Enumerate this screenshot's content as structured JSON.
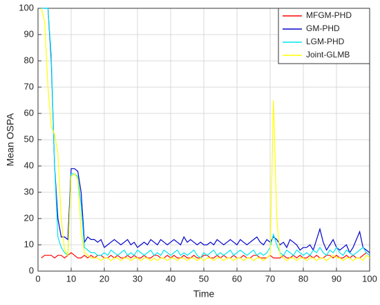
{
  "chart_data": {
    "type": "line",
    "x_label": "Time",
    "y_label": "Mean OSPA",
    "x": [
      1,
      2,
      3,
      4,
      5,
      6,
      7,
      8,
      9,
      10,
      11,
      12,
      13,
      14,
      15,
      16,
      17,
      18,
      19,
      20,
      21,
      22,
      23,
      24,
      25,
      26,
      27,
      28,
      29,
      30,
      31,
      32,
      33,
      34,
      35,
      36,
      37,
      38,
      39,
      40,
      41,
      42,
      43,
      44,
      45,
      46,
      47,
      48,
      49,
      50,
      51,
      52,
      53,
      54,
      55,
      56,
      57,
      58,
      59,
      60,
      61,
      62,
      63,
      64,
      65,
      66,
      67,
      68,
      69,
      70,
      71,
      72,
      73,
      74,
      75,
      76,
      77,
      78,
      79,
      80,
      81,
      82,
      83,
      84,
      85,
      86,
      87,
      88,
      89,
      90,
      91,
      92,
      93,
      94,
      95,
      96,
      97,
      98,
      99,
      100
    ],
    "series": [
      {
        "name": "MFGM-PHD",
        "color": "#ff0000",
        "values": [
          5,
          6,
          6,
          6,
          5,
          6,
          6,
          5,
          6,
          7,
          6,
          5,
          5,
          6,
          5,
          6,
          5,
          6,
          6,
          5,
          5,
          6,
          5,
          6,
          5,
          5,
          6,
          5,
          6,
          5,
          5,
          6,
          5,
          5,
          6,
          6,
          5,
          5,
          6,
          5,
          6,
          5,
          5,
          6,
          5,
          5,
          6,
          5,
          5,
          6,
          6,
          5,
          5,
          6,
          5,
          6,
          5,
          5,
          6,
          5,
          5,
          6,
          5,
          5,
          6,
          6,
          5,
          5,
          5,
          6,
          5,
          5,
          5,
          6,
          5,
          5,
          6,
          5,
          6,
          5,
          5,
          6,
          5,
          6,
          5,
          5,
          6,
          6,
          5,
          6,
          5,
          5,
          6,
          5,
          6,
          5,
          5,
          6,
          7,
          6
        ]
      },
      {
        "name": "GM-PHD",
        "color": "#0000cc",
        "values": [
          100,
          100,
          100,
          80,
          40,
          20,
          13,
          13,
          12,
          39,
          39,
          38,
          30,
          11,
          13,
          12,
          12,
          11,
          12,
          9,
          10,
          11,
          12,
          11,
          10,
          11,
          12,
          10,
          11,
          9,
          10,
          11,
          10,
          12,
          11,
          10,
          12,
          11,
          10,
          11,
          12,
          11,
          10,
          13,
          11,
          12,
          11,
          10,
          11,
          10,
          10,
          11,
          10,
          12,
          11,
          10,
          11,
          12,
          11,
          10,
          12,
          11,
          10,
          11,
          12,
          13,
          11,
          10,
          12,
          11,
          13,
          12,
          10,
          11,
          9,
          12,
          11,
          10,
          8,
          9,
          9,
          10,
          8,
          12,
          16,
          11,
          8,
          10,
          12,
          9,
          8,
          9,
          10,
          7,
          9,
          12,
          15,
          9,
          8,
          7
        ]
      },
      {
        "name": "LGM-PHD",
        "color": "#00e5ee",
        "values": [
          100,
          100,
          100,
          82,
          40,
          13,
          9,
          7,
          6,
          37,
          37,
          36,
          25,
          9,
          8,
          7,
          7,
          6,
          6,
          7,
          6,
          8,
          7,
          6,
          7,
          8,
          6,
          7,
          6,
          8,
          7,
          6,
          7,
          8,
          6,
          7,
          6,
          8,
          7,
          6,
          7,
          8,
          6,
          7,
          6,
          7,
          8,
          6,
          5,
          7,
          6,
          7,
          8,
          6,
          7,
          6,
          7,
          8,
          6,
          7,
          8,
          7,
          6,
          7,
          8,
          6,
          7,
          6,
          7,
          9,
          14,
          10,
          7,
          6,
          8,
          7,
          6,
          8,
          7,
          6,
          7,
          6,
          8,
          7,
          9,
          7,
          6,
          8,
          7,
          9,
          7,
          6,
          8,
          7,
          6,
          7,
          8,
          9,
          7,
          6
        ]
      },
      {
        "name": "Joint-GLMB",
        "color": "#ffff00",
        "values": [
          100,
          95,
          70,
          55,
          52,
          45,
          20,
          8,
          6,
          36,
          37,
          35,
          15,
          7,
          6,
          5,
          5,
          5,
          4,
          5,
          5,
          4,
          5,
          5,
          4,
          5,
          5,
          4,
          5,
          5,
          4,
          5,
          5,
          4,
          5,
          4,
          5,
          5,
          4,
          5,
          5,
          4,
          5,
          5,
          4,
          5,
          5,
          4,
          5,
          4,
          5,
          5,
          4,
          5,
          5,
          4,
          5,
          5,
          4,
          5,
          5,
          4,
          5,
          5,
          4,
          5,
          5,
          4,
          5,
          6,
          65,
          20,
          6,
          5,
          4,
          5,
          5,
          4,
          5,
          5,
          4,
          5,
          5,
          4,
          5,
          5,
          4,
          5,
          6,
          5,
          5,
          4,
          5,
          5,
          4,
          5,
          5,
          4,
          6,
          5
        ]
      }
    ],
    "xlim": [
      0,
      100
    ],
    "ylim": [
      0,
      100
    ],
    "xticks": [
      0,
      10,
      20,
      30,
      40,
      50,
      60,
      70,
      80,
      90,
      100
    ],
    "yticks": [
      0,
      10,
      20,
      30,
      40,
      50,
      60,
      70,
      80,
      90,
      100
    ],
    "grid": true,
    "legend": "top-right"
  }
}
